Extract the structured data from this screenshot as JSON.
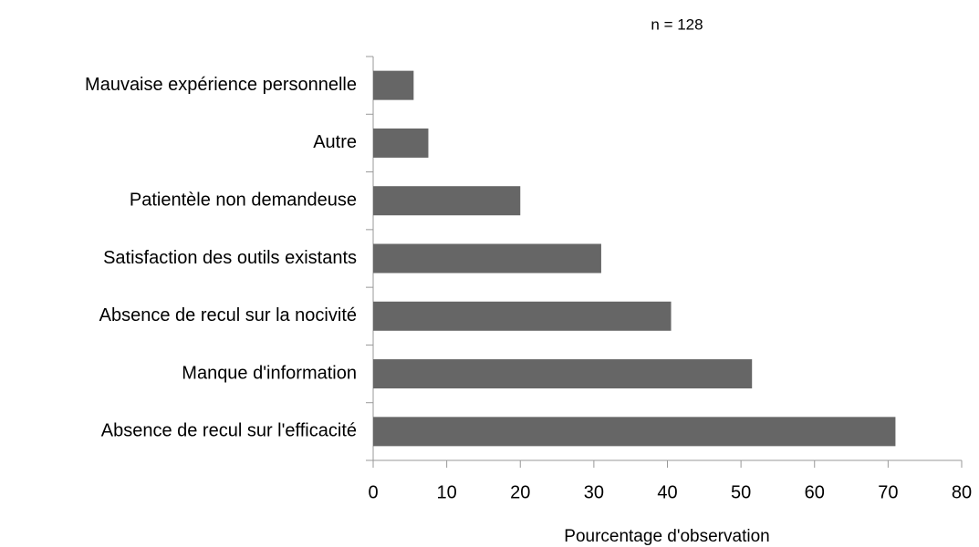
{
  "chart_data": {
    "type": "bar",
    "orientation": "horizontal",
    "subtitle": "n = 128",
    "xlabel": "Pourcentage d'observation",
    "categories": [
      "Mauvaise expérience personnelle",
      "Autre",
      "Patientèle non demandeuse",
      "Satisfaction des outils existants",
      "Absence de recul sur la nocivité",
      "Manque d'information",
      "Absence de recul sur l'efficacité"
    ],
    "values": [
      5.5,
      7.5,
      20,
      31,
      40.5,
      51.5,
      71
    ],
    "color": "#666666",
    "xlim": [
      0,
      80
    ],
    "xticks": [
      0,
      10,
      20,
      30,
      40,
      50,
      60,
      70,
      80
    ],
    "grid": false
  }
}
